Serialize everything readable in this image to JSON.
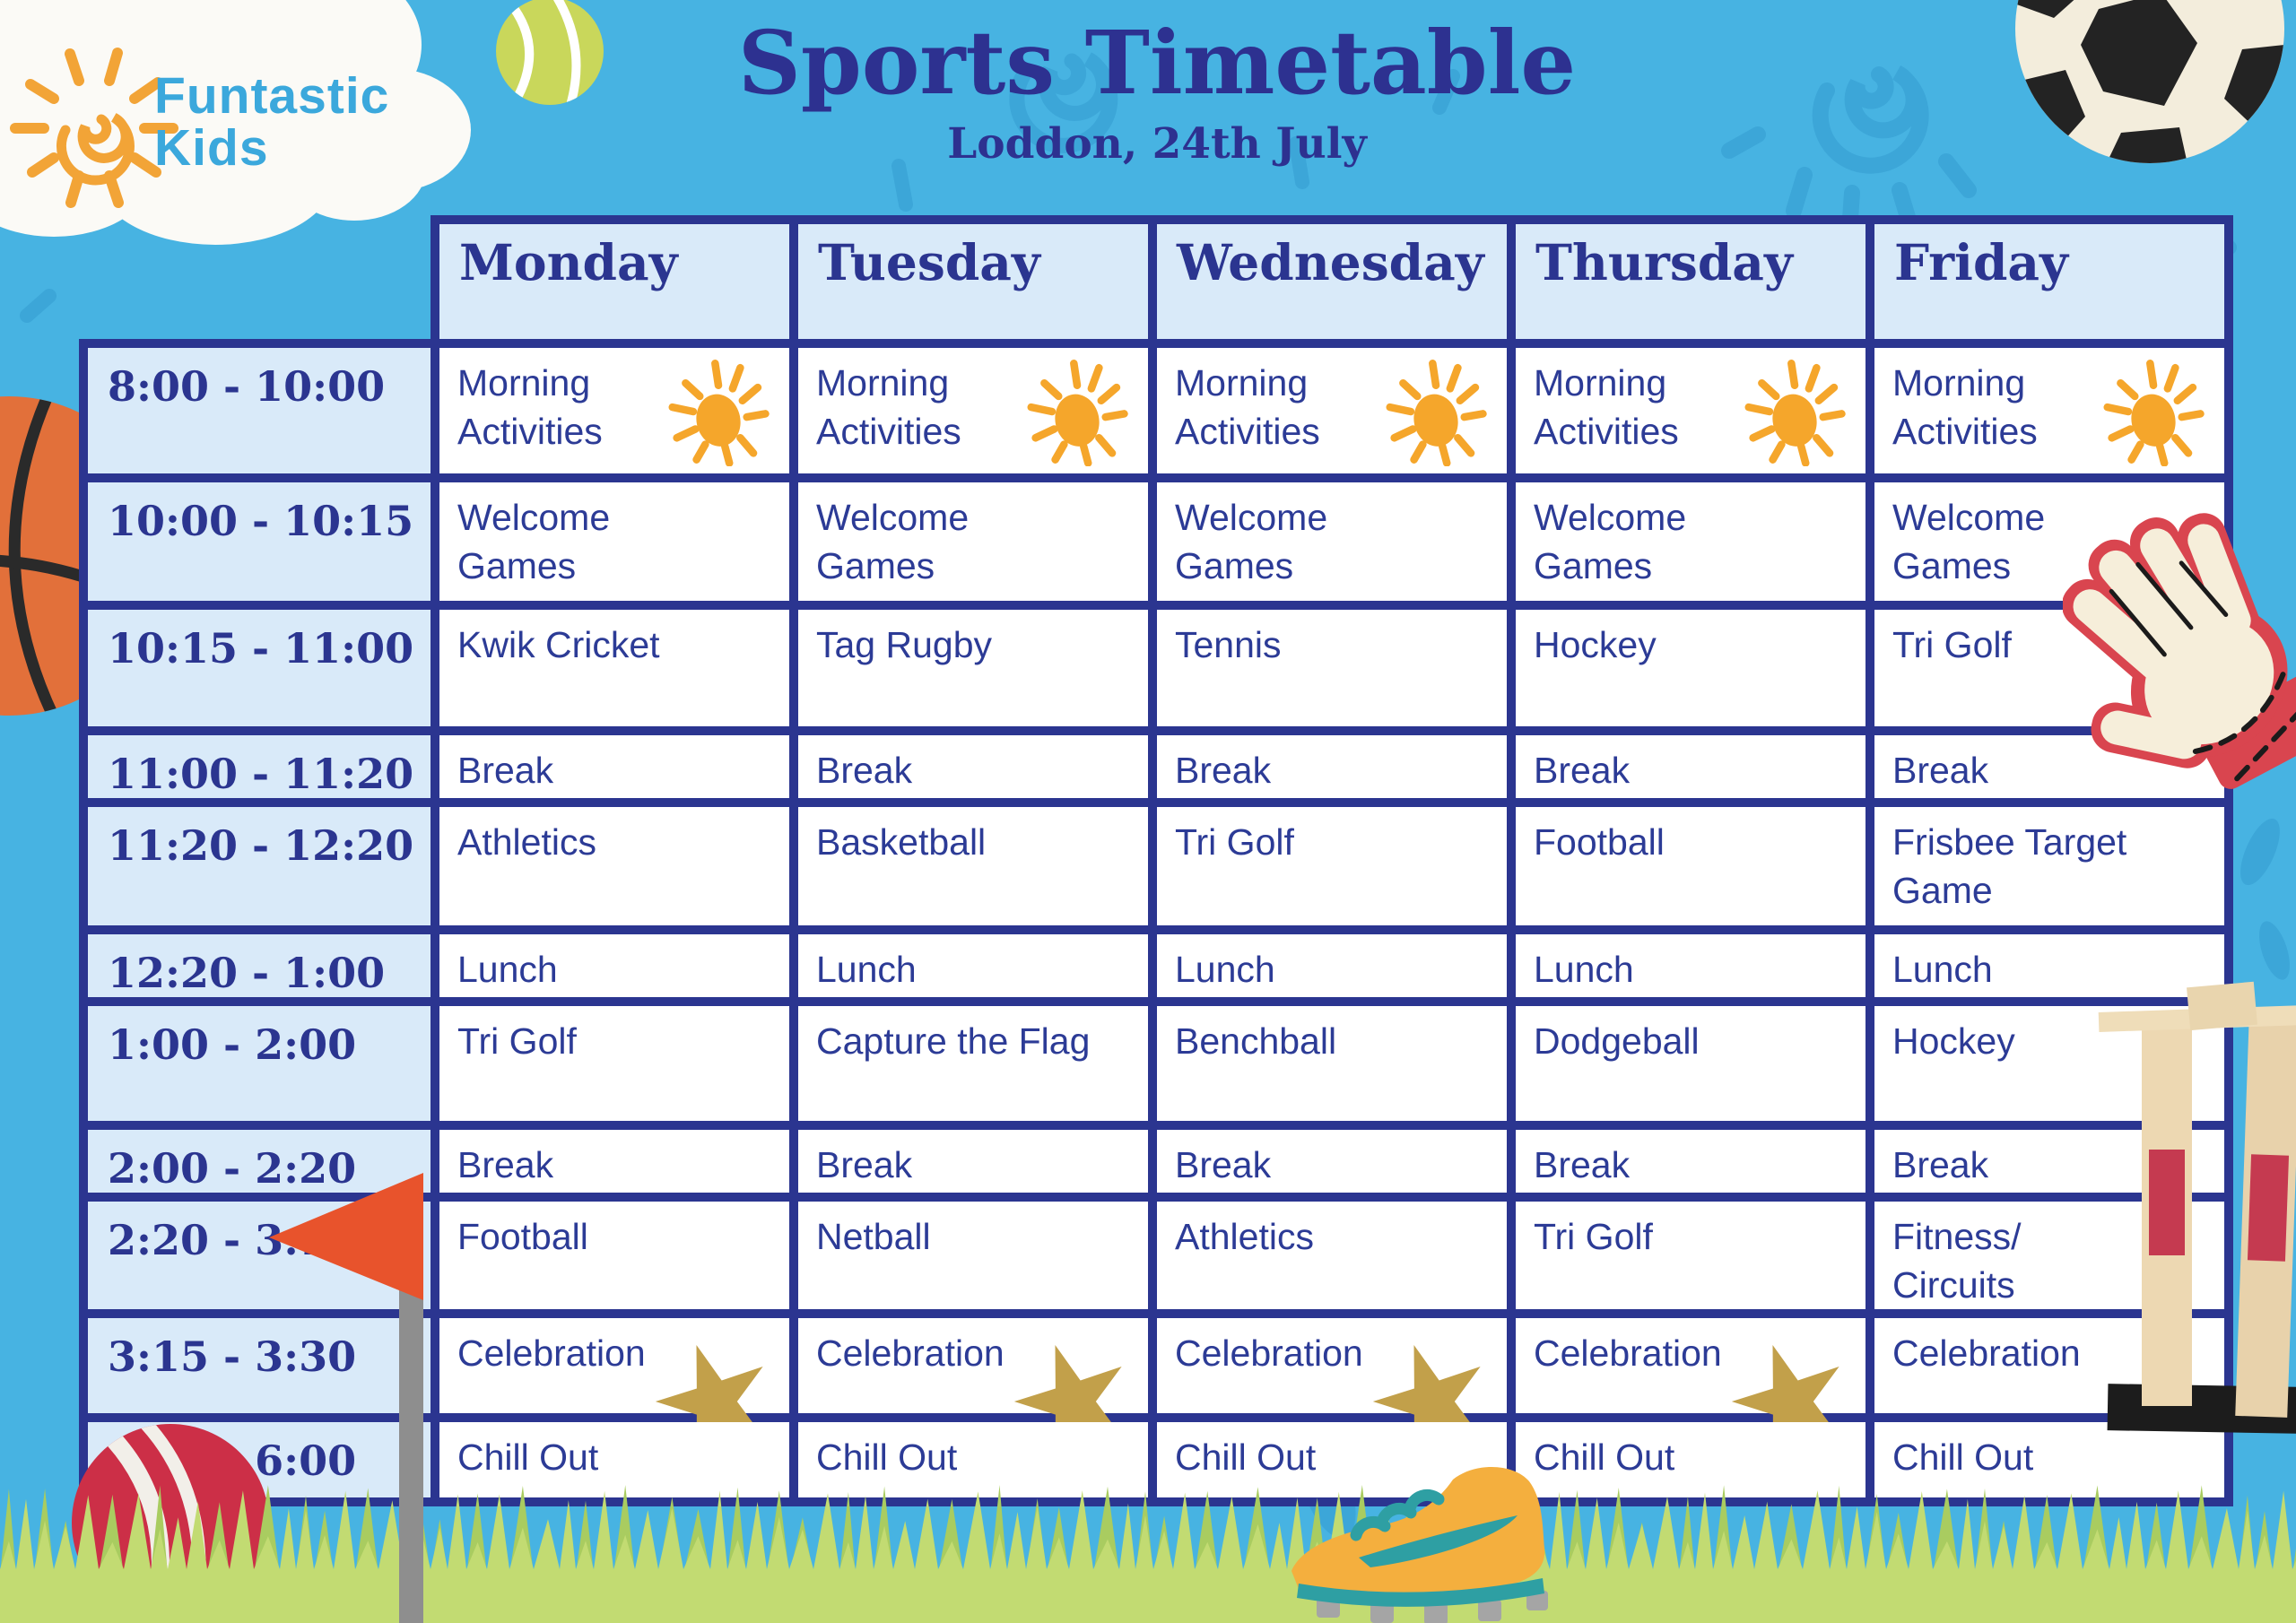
{
  "logo": {
    "line1": "Funtastic",
    "line2": "Kids"
  },
  "title": "Sports Timetable",
  "subtitle": "Loddon, 24th July",
  "colors": {
    "background": "#47B3E2",
    "doodle": "#2F97CC",
    "navy_text": "#2B3590",
    "cell_text": "#2C3B96",
    "header_fill": "#D9EAF9",
    "cell_fill": "#FFFFFF",
    "logo_blue": "#3BA8DC",
    "sun_orange": "#F5A62B",
    "star_gold": "#C2A04A",
    "grass_green": "#C2DB72",
    "flag_red": "#E8532C",
    "cricket_ball_red": "#CC2F47",
    "basketball_orange": "#E2703A",
    "boot_orange": "#F4AF3E",
    "boot_teal": "#2E9FA3",
    "stump_beige": "#EDD8B2"
  },
  "timetable": {
    "days": [
      "Monday",
      "Tuesday",
      "Wednesday",
      "Thursday",
      "Friday"
    ],
    "rows": [
      {
        "time": "8:00 - 10:00",
        "cells": [
          {
            "label": "Morning\nActivities",
            "icon": "sun-icon"
          },
          {
            "label": "Morning\nActivities",
            "icon": "sun-icon"
          },
          {
            "label": "Morning\nActivities",
            "icon": "sun-icon"
          },
          {
            "label": "Morning\nActivities",
            "icon": "sun-icon"
          },
          {
            "label": "Morning\nActivities",
            "icon": "sun-icon"
          }
        ]
      },
      {
        "time": "10:00 - 10:15",
        "cells": [
          {
            "label": "Welcome\nGames",
            "icon": ""
          },
          {
            "label": "Welcome\nGames",
            "icon": ""
          },
          {
            "label": "Welcome\nGames",
            "icon": ""
          },
          {
            "label": "Welcome\nGames",
            "icon": ""
          },
          {
            "label": "Welcome\nGames",
            "icon": ""
          }
        ]
      },
      {
        "time": "10:15 - 11:00",
        "cells": [
          {
            "label": "Kwik Cricket",
            "icon": ""
          },
          {
            "label": "Tag Rugby",
            "icon": ""
          },
          {
            "label": "Tennis",
            "icon": ""
          },
          {
            "label": "Hockey",
            "icon": ""
          },
          {
            "label": "Tri Golf",
            "icon": ""
          }
        ]
      },
      {
        "time": "11:00 - 11:20",
        "cells": [
          {
            "label": "Break",
            "icon": ""
          },
          {
            "label": "Break",
            "icon": ""
          },
          {
            "label": "Break",
            "icon": ""
          },
          {
            "label": "Break",
            "icon": ""
          },
          {
            "label": "Break",
            "icon": ""
          }
        ]
      },
      {
        "time": "11:20 - 12:20",
        "cells": [
          {
            "label": "Athletics",
            "icon": ""
          },
          {
            "label": "Basketball",
            "icon": ""
          },
          {
            "label": "Tri Golf",
            "icon": ""
          },
          {
            "label": "Football",
            "icon": ""
          },
          {
            "label": "Frisbee Target\nGame",
            "icon": ""
          }
        ]
      },
      {
        "time": "12:20 - 1:00",
        "cells": [
          {
            "label": "Lunch",
            "icon": ""
          },
          {
            "label": "Lunch",
            "icon": ""
          },
          {
            "label": "Lunch",
            "icon": ""
          },
          {
            "label": "Lunch",
            "icon": ""
          },
          {
            "label": "Lunch",
            "icon": ""
          }
        ]
      },
      {
        "time": "1:00 - 2:00",
        "cells": [
          {
            "label": "Tri Golf",
            "icon": ""
          },
          {
            "label": "Capture the Flag",
            "icon": ""
          },
          {
            "label": "Benchball",
            "icon": ""
          },
          {
            "label": "Dodgeball",
            "icon": ""
          },
          {
            "label": "Hockey",
            "icon": ""
          }
        ]
      },
      {
        "time": "2:00 - 2:20",
        "cells": [
          {
            "label": "Break",
            "icon": ""
          },
          {
            "label": "Break",
            "icon": ""
          },
          {
            "label": "Break",
            "icon": ""
          },
          {
            "label": "Break",
            "icon": ""
          },
          {
            "label": "Break",
            "icon": ""
          }
        ]
      },
      {
        "time": "2:20 - 3:15",
        "cells": [
          {
            "label": "Football",
            "icon": ""
          },
          {
            "label": "Netball",
            "icon": ""
          },
          {
            "label": "Athletics",
            "icon": ""
          },
          {
            "label": "Tri Golf",
            "icon": ""
          },
          {
            "label": "Fitness/\nCircuits",
            "icon": ""
          }
        ]
      },
      {
        "time": "3:15 - 3:30",
        "cells": [
          {
            "label": "Celebration",
            "icon": "star-icon"
          },
          {
            "label": "Celebration",
            "icon": "star-icon"
          },
          {
            "label": "Celebration",
            "icon": "star-icon"
          },
          {
            "label": "Celebration",
            "icon": "star-icon"
          },
          {
            "label": "Celebration",
            "icon": ""
          }
        ]
      },
      {
        "time": "3:30 - 6:00",
        "cells": [
          {
            "label": "Chill Out",
            "icon": ""
          },
          {
            "label": "Chill Out",
            "icon": ""
          },
          {
            "label": "Chill Out",
            "icon": ""
          },
          {
            "label": "Chill Out",
            "icon": ""
          },
          {
            "label": "Chill Out",
            "icon": ""
          }
        ]
      }
    ]
  },
  "decorations": [
    "sun-logo-icon",
    "cloud",
    "tennis-ball",
    "soccer-ball",
    "basketball",
    "goalkeeper-glove",
    "cricket-stumps",
    "corner-flag",
    "cricket-ball",
    "football-boot",
    "grass"
  ]
}
